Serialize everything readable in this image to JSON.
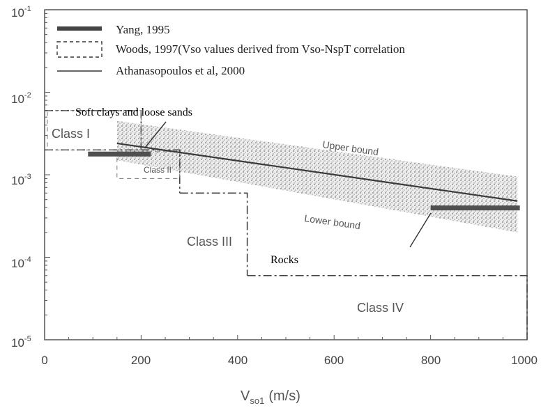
{
  "chart_data": {
    "type": "line",
    "xlabel": "V",
    "xlabel_sub": "so1",
    "xlabel_unit": "(m/s)",
    "xlim": [
      0,
      1000
    ],
    "ylim": [
      1e-05,
      0.1
    ],
    "y_scale": "log",
    "x_ticks": [
      "0",
      "200",
      "400",
      "600",
      "800",
      "1000"
    ],
    "y_ticks": [
      {
        "base": "10",
        "exp": "-1"
      },
      {
        "base": "10",
        "exp": "-2"
      },
      {
        "base": "10",
        "exp": "-3"
      },
      {
        "base": "10",
        "exp": "-4"
      },
      {
        "base": "10",
        "exp": "-5"
      }
    ],
    "legend": [
      {
        "label": "Yang, 1995",
        "style": "thick-band"
      },
      {
        "label": "Woods, 1997(Vso values derived from Vso-NspT correlation",
        "style": "dash-box"
      },
      {
        "label": "Athanasopoulos et al, 2000",
        "style": "thin-line"
      }
    ],
    "series": [
      {
        "name": "Athanasopoulos et al, 2000",
        "points": [
          [
            150,
            0.0024
          ],
          [
            980,
            0.00048
          ]
        ]
      },
      {
        "name": "Upper bound",
        "points": [
          [
            150,
            0.0045
          ],
          [
            980,
            0.00095
          ]
        ]
      },
      {
        "name": "Lower bound",
        "points": [
          [
            150,
            0.0015
          ],
          [
            980,
            0.0002
          ]
        ]
      },
      {
        "name": "Yang, 1995",
        "segments": [
          {
            "x": [
              90,
              220
            ],
            "y": 0.0018
          },
          {
            "x": [
              800,
              985
            ],
            "y": 0.0004
          }
        ]
      }
    ],
    "regions": [
      {
        "name": "Class I",
        "x": [
          0,
          200
        ],
        "y": [
          0.002,
          0.006
        ]
      },
      {
        "name": "Class II",
        "x": [
          200,
          280
        ],
        "y": [
          0.0006,
          0.002
        ]
      },
      {
        "name": "Class III",
        "x": [
          280,
          420
        ],
        "y": [
          6e-05,
          0.0006
        ]
      },
      {
        "name": "Class IV",
        "x": [
          420,
          1000
        ],
        "y": [
          1e-05,
          6e-05
        ]
      }
    ],
    "annotations": {
      "soft": "Soft clays and loose sands",
      "rocks": "Rocks",
      "upper": "Upper bound",
      "lower": "Lower bound",
      "class1": "Class I",
      "class2": "Class II",
      "class3": "Class III",
      "class4": "Class IV"
    },
    "colors": {
      "axis": "#555555",
      "band": "#8c8c8c",
      "line": "#3a3a3a",
      "yang": "#505050"
    },
    "grid": false
  }
}
